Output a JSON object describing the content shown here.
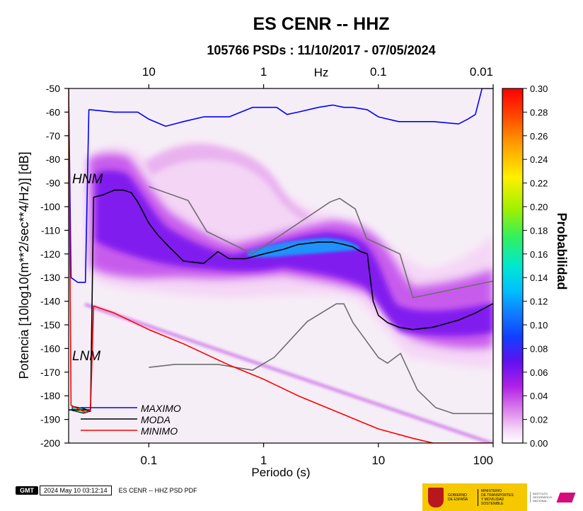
{
  "title": "ES CENR -- HHZ",
  "subtitle": "105766 PSDs : 11/10/2017 - 07/05/2024",
  "chart_data": {
    "type": "heatmap",
    "title": "ES CENR -- HHZ",
    "subtitle": "105766 PSDs : 11/10/2017 - 07/05/2024",
    "xlabel": "Periodo (s)",
    "ylabel": "Potencia [10log10(m**2/sec**4/Hz)] [dB]",
    "x_scale": "log",
    "xlim": [
      0.02,
      100
    ],
    "ylim": [
      -200,
      -50
    ],
    "x_ticks": [
      0.1,
      1,
      10,
      100
    ],
    "x_tick_labels": [
      "0.1",
      "1",
      "10",
      "100"
    ],
    "y_ticks": [
      -200,
      -190,
      -180,
      -170,
      -160,
      -150,
      -140,
      -130,
      -120,
      -110,
      -100,
      -90,
      -80,
      -70,
      -60,
      -50
    ],
    "top_axis": {
      "label": "Hz",
      "ticks": [
        10,
        1,
        0.1,
        0.01
      ],
      "tick_labels": [
        "10",
        "1",
        "0.1",
        "0.01"
      ]
    },
    "colorbar": {
      "label": "Probabilidad",
      "range": [
        0,
        0.3
      ],
      "ticks": [
        "0.30",
        "0.28",
        "0.26",
        "0.24",
        "0.22",
        "0.20",
        "0.18",
        "0.16",
        "0.14",
        "0.12",
        "0.10",
        "0.08",
        "0.06",
        "0.04",
        "0.02",
        "0.00"
      ],
      "colors": [
        "#ffffff",
        "#f0c8f4",
        "#d070e6",
        "#b020e8",
        "#8a10f0",
        "#2a20f0",
        "#1060ff",
        "#00b8ff",
        "#00e8e0",
        "#30f070",
        "#a0f000",
        "#ffe000",
        "#ff9000",
        "#ff2000"
      ]
    },
    "reference_models": [
      {
        "name": "HNM",
        "x": [
          0.1,
          0.22,
          0.32,
          0.8,
          3.8,
          4.6,
          6.3,
          7.9,
          15.4,
          20,
          354.8
        ],
        "y": [
          -91.5,
          -97.4,
          -110.5,
          -120.0,
          -98.0,
          -96.5,
          -101.0,
          -113.5,
          -120.0,
          -138.5,
          -126.0
        ]
      },
      {
        "name": "LNM",
        "x": [
          0.1,
          0.17,
          0.4,
          0.8,
          1.24,
          2.4,
          4.3,
          5,
          6,
          10,
          12,
          15.6,
          21.9,
          31.6,
          45,
          70,
          101,
          154
        ],
        "y": [
          -168.0,
          -166.7,
          -166.7,
          -169.2,
          -163.7,
          -148.6,
          -141.1,
          -141.1,
          -149.0,
          -163.8,
          -166.2,
          -162.1,
          -177.5,
          -185.0,
          -187.5,
          -187.5,
          -187.5,
          -185.0
        ]
      }
    ],
    "series": [
      {
        "name": "MAXIMO",
        "color": "#0000ff",
        "x": [
          0.02,
          0.021,
          0.024,
          0.028,
          0.03,
          0.031,
          0.05,
          0.06,
          0.08,
          0.1,
          0.14,
          0.2,
          0.3,
          0.5,
          0.8,
          1,
          1.3,
          1.6,
          2,
          3,
          4,
          5,
          6,
          8,
          10,
          15,
          20,
          30,
          50,
          60,
          70,
          80,
          100
        ],
        "y": [
          -50,
          -130,
          -132,
          -132,
          -59,
          -59,
          -60,
          -60,
          -60,
          -63,
          -66,
          -64,
          -62,
          -62,
          -58,
          -58,
          -58,
          -61,
          -60,
          -58,
          -57,
          -58,
          -58,
          -59,
          -62,
          -64,
          -64,
          -64,
          -65,
          -63,
          -61,
          -50,
          -50
        ]
      },
      {
        "name": "MODA",
        "color": "#000000",
        "x": [
          0.02,
          0.028,
          0.031,
          0.033,
          0.04,
          0.05,
          0.06,
          0.07,
          0.08,
          0.1,
          0.12,
          0.15,
          0.2,
          0.3,
          0.4,
          0.5,
          0.7,
          1,
          1.5,
          2,
          3,
          4,
          5,
          6,
          7,
          8,
          9,
          10,
          12,
          15,
          20,
          30,
          50,
          70,
          100
        ],
        "y": [
          -186,
          -186,
          -186,
          -96,
          -95,
          -93,
          -93,
          -94,
          -98,
          -107,
          -112,
          -117,
          -123,
          -124,
          -119,
          -122,
          -122,
          -120,
          -118,
          -116,
          -115,
          -115,
          -116,
          -117,
          -119,
          -120,
          -140,
          -146,
          -149,
          -151,
          -152,
          -151,
          -148,
          -145,
          -141
        ]
      },
      {
        "name": "MINIMO",
        "color": "#ff0000",
        "x": [
          0.02,
          0.021,
          0.028,
          0.031,
          0.033,
          0.05,
          0.1,
          0.2,
          0.5,
          1,
          2,
          5,
          10,
          20,
          30,
          50,
          100
        ],
        "y": [
          -50,
          -184,
          -187,
          -186,
          -142,
          -145,
          -152,
          -158,
          -167,
          -173,
          -180,
          -188,
          -194,
          -198,
          -200,
          -200,
          -200
        ]
      }
    ],
    "legend": {
      "position": "bottom-left",
      "entries": [
        "MAXIMO",
        "MODA",
        "MINIMO"
      ]
    },
    "annotations": [
      "HNM",
      "LNM"
    ],
    "grid": false
  },
  "footer": {
    "badge": "GMT",
    "timestamp": "2024 May 10 03:12:14",
    "caption": "ES CENR -- HHZ PSD PDF"
  },
  "logos": {
    "gov_line1": "GOBIERNO",
    "gov_line2": "DE ESPAÑA",
    "ministry_line1": "MINISTERIO",
    "ministry_line2": "DE TRANSPORTES",
    "ministry_line3": "Y MOVILIDAD SOSTENIBLE",
    "ign_line1": "INSTITUTO",
    "ign_line2": "GEOGRÁFICO",
    "ign_line3": "NACIONAL"
  }
}
